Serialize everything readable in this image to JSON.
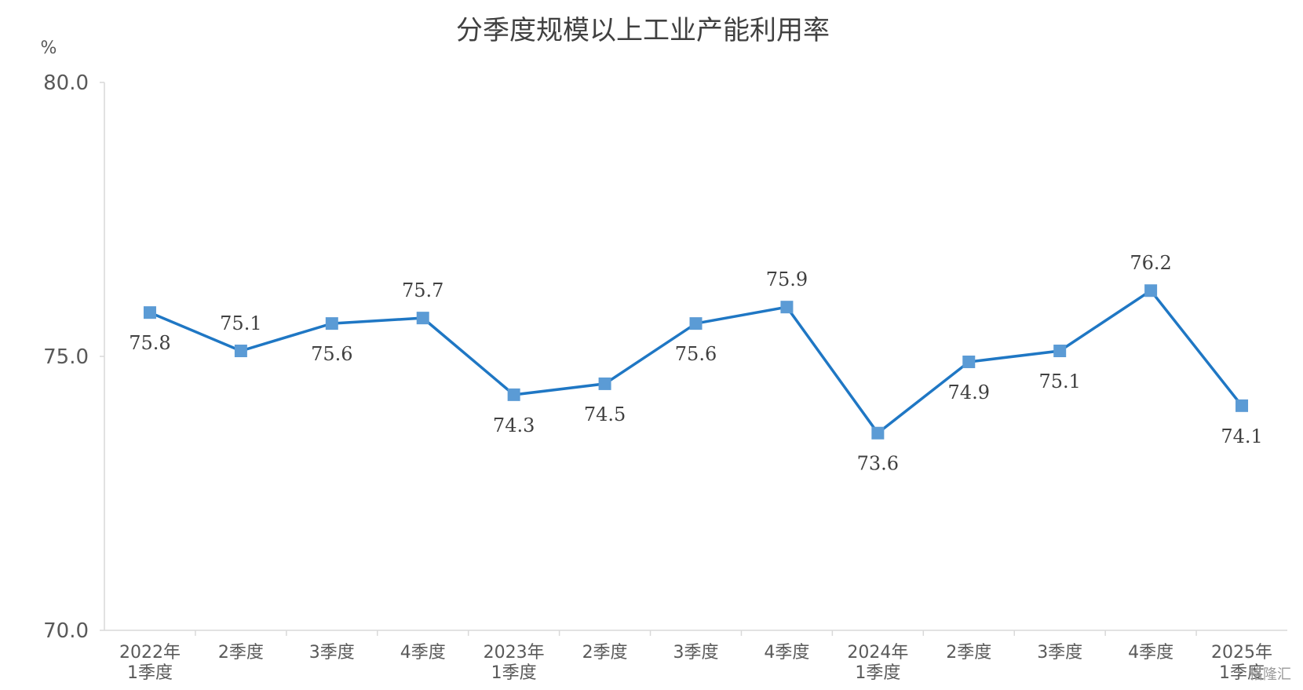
{
  "chart_data": {
    "type": "line",
    "title": "分季度规模以上工业产能利用率",
    "ylabel": "%",
    "xlabel": "",
    "ylim": [
      70.0,
      80.0
    ],
    "yticks": [
      "70.0",
      "75.0",
      "80.0"
    ],
    "grid": false,
    "categories": [
      [
        "2022年",
        "1季度"
      ],
      [
        "2季度"
      ],
      [
        "3季度"
      ],
      [
        "4季度"
      ],
      [
        "2023年",
        "1季度"
      ],
      [
        "2季度"
      ],
      [
        "3季度"
      ],
      [
        "4季度"
      ],
      [
        "2024年",
        "1季度"
      ],
      [
        "2季度"
      ],
      [
        "3季度"
      ],
      [
        "4季度"
      ],
      [
        "2025年",
        "1季度"
      ]
    ],
    "values": [
      75.8,
      75.1,
      75.6,
      75.7,
      74.3,
      74.5,
      75.6,
      75.9,
      73.6,
      74.9,
      75.1,
      76.2,
      74.1
    ],
    "data_labels": [
      "75.8",
      "75.1",
      "75.6",
      "75.7",
      "74.3",
      "74.5",
      "75.6",
      "75.9",
      "73.6",
      "74.9",
      "75.1",
      "76.2",
      "74.1"
    ],
    "label_positions": [
      "below",
      "above",
      "below",
      "above",
      "below",
      "below",
      "below",
      "above",
      "below",
      "below",
      "below",
      "above",
      "below"
    ],
    "line_color": "#1f77c4",
    "marker_color": "#5b9bd5"
  },
  "watermark": "格隆汇"
}
